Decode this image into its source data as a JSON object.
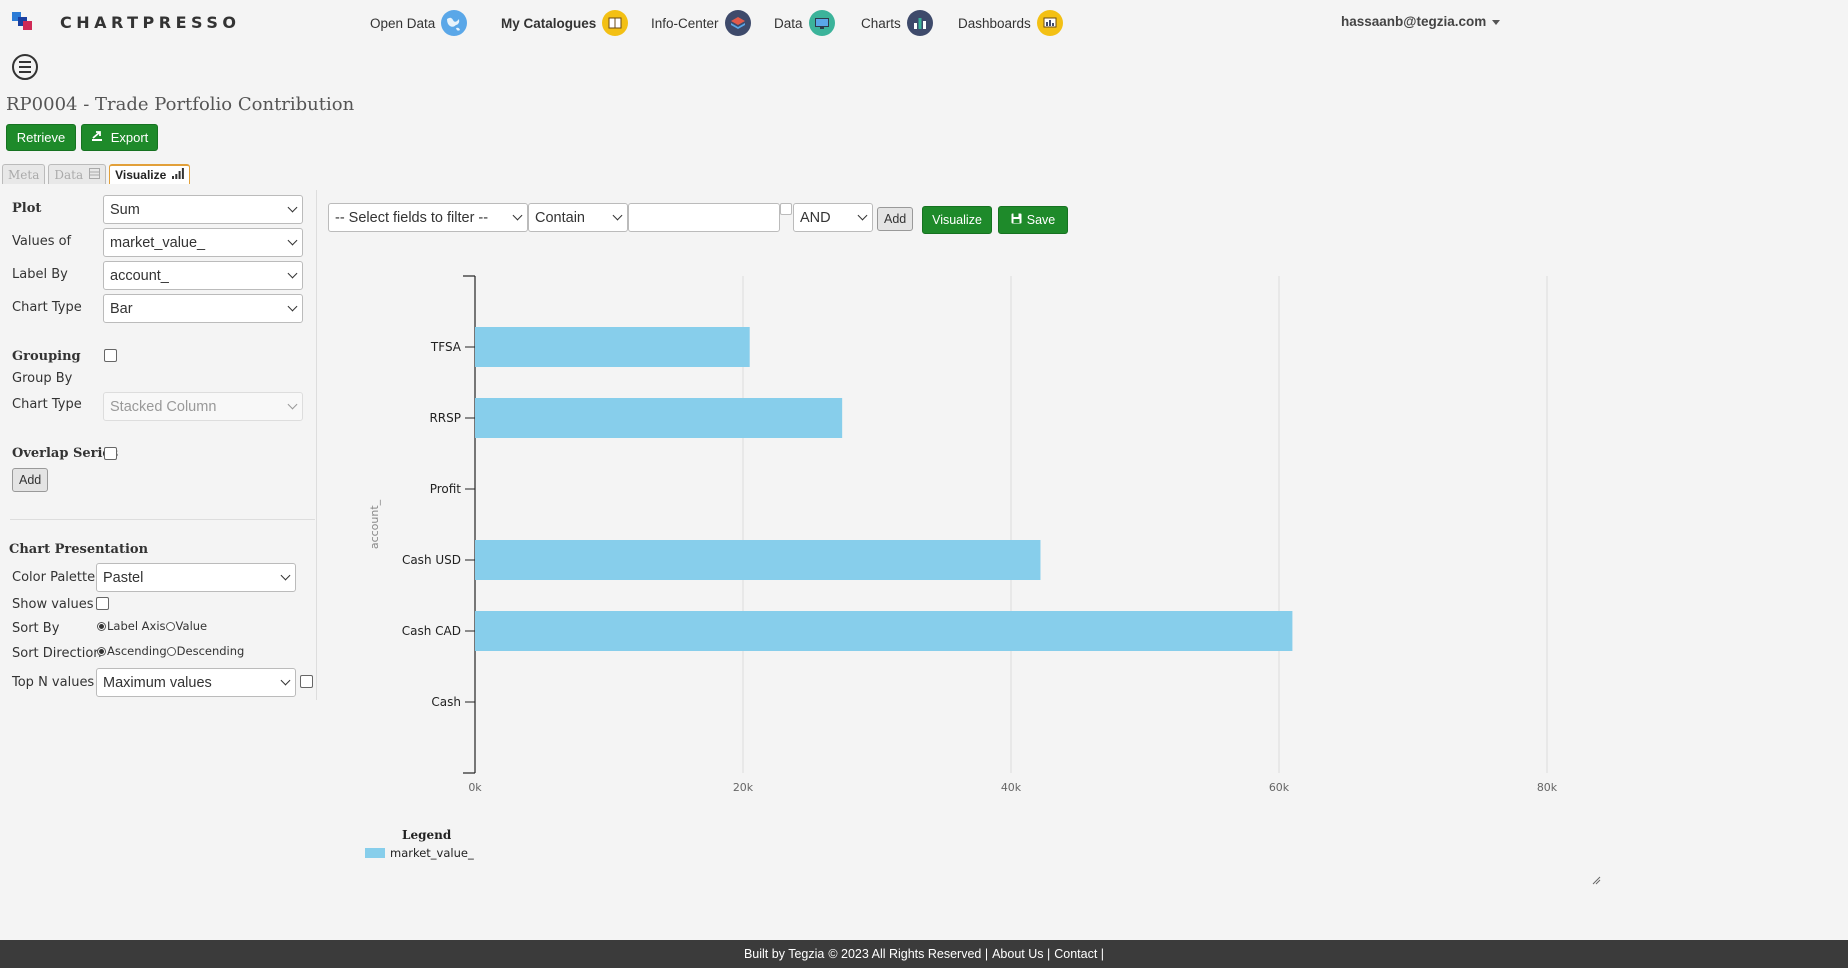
{
  "app": {
    "brand": "CHARTPRESSO",
    "colors": {
      "accent_green": "#1e8a2a",
      "bar": "#87ceeb",
      "footer_bg": "#3b3b3b",
      "tab_active_border": "#e2a03a"
    }
  },
  "nav": {
    "items": [
      {
        "label": "Open Data",
        "icon": "globe-icon"
      },
      {
        "label": "My Catalogues",
        "icon": "book-icon"
      },
      {
        "label": "Info-Center",
        "icon": "layers-icon"
      },
      {
        "label": "Data",
        "icon": "monitor-icon"
      },
      {
        "label": "Charts",
        "icon": "bar-chart-icon"
      },
      {
        "label": "Dashboards",
        "icon": "dashboard-icon"
      }
    ],
    "user": "hassaanb@tegzia.com"
  },
  "page": {
    "title": "RP0004 - Trade Portfolio Contribution",
    "retrieve_label": "Retrieve",
    "export_label": "Export"
  },
  "tabs": [
    {
      "label": "Meta",
      "active": false
    },
    {
      "label": "Data",
      "active": false
    },
    {
      "label": "Visualize",
      "active": true
    }
  ],
  "form": {
    "plot_label": "Plot",
    "plot_value": "Sum",
    "values_of_label": "Values of",
    "values_of_value": "market_value_",
    "label_by_label": "Label By",
    "label_by_value": "account_",
    "chart_type_label": "Chart Type",
    "chart_type_value": "Bar",
    "grouping_label": "Grouping",
    "group_by_label": "Group By",
    "group_chart_type_label": "Chart Type",
    "group_chart_type_value": "Stacked Column",
    "overlap_label": "Overlap Series",
    "add_label": "Add"
  },
  "presentation": {
    "heading": "Chart Presentation",
    "palette_label": "Color Palette",
    "palette_value": "Pastel",
    "show_values_label": "Show values",
    "sort_by_label": "Sort By",
    "sort_by_options": [
      "Label Axis",
      "Value"
    ],
    "sort_by_selected": "Label Axis",
    "sort_dir_label": "Sort Direction",
    "sort_dir_options": [
      "Ascending",
      "Descending"
    ],
    "sort_dir_selected": "Ascending",
    "top_n_label": "Top N values",
    "top_n_value": "Maximum values"
  },
  "filter": {
    "field_placeholder": "-- Select fields to filter --",
    "operator": "Contain",
    "value": "",
    "conjunction": "AND",
    "add_label": "Add",
    "visualize_label": "Visualize",
    "save_label": "Save"
  },
  "chart_data": {
    "type": "bar",
    "orientation": "horizontal",
    "categories": [
      "TFSA",
      "RRSP",
      "Profit",
      "Cash USD",
      "Cash CAD",
      "Cash"
    ],
    "series": [
      {
        "name": "market_value_",
        "values": [
          20500,
          27400,
          0,
          42200,
          61000,
          0
        ]
      }
    ],
    "xticks": [
      "0k",
      "20k",
      "40k",
      "60k",
      "80k"
    ],
    "xlim": [
      0,
      80000
    ],
    "ylabel": "account_",
    "grid": true,
    "legend_title": "Legend",
    "legend_position": "bottom-left"
  },
  "footer": {
    "built_by": "Built by Tegzia",
    "copyright": "© 2023 All Rights Reserved |",
    "about": "About Us |",
    "contact": "Contact |"
  }
}
